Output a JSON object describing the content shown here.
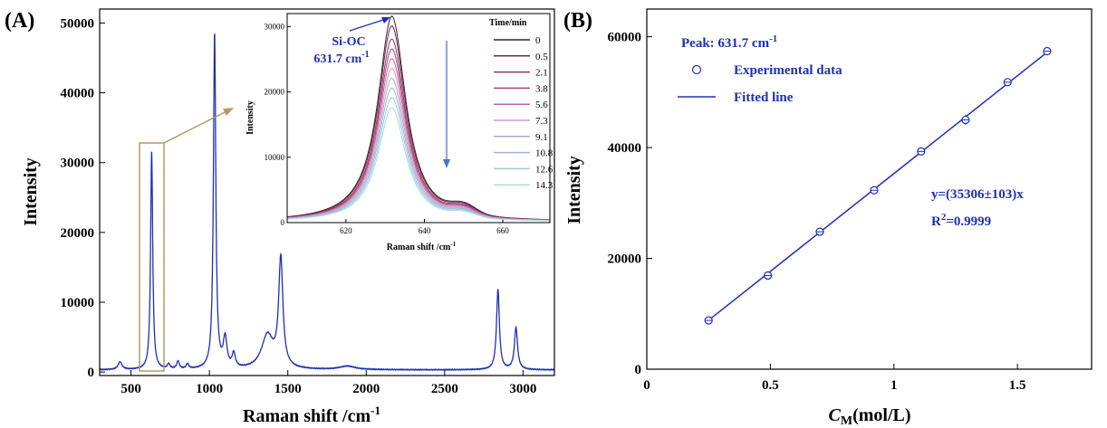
{
  "panel_a": {
    "label": "(A)",
    "xlabel": "Raman shift /cm",
    "xlabel_sup": "-1",
    "ylabel": "Intensity",
    "inset": {
      "xlabel": "Raman shift /cm",
      "xlabel_sup": "-1",
      "ylabel": "Intensity",
      "annotation_line1": "Si-OC",
      "annotation_line2": "631.7 cm",
      "annotation_sup": "-1",
      "legend_title": "Time/min"
    }
  },
  "panel_b": {
    "label": "(B)",
    "xlabel_main": "C",
    "xlabel_sub": "M",
    "xlabel_rest": "(mol/L)",
    "ylabel": "Intensity",
    "peak_label": "Peak: 631.7 cm",
    "peak_sup": "-1",
    "legend_data": "Experimental data",
    "legend_fit": "Fitted line",
    "equation": "y=(35306±103)x",
    "r2_prefix": "R",
    "r2_sup": "2",
    "r2_value": "=0.9999"
  },
  "colors": {
    "spectrum": "#1f2fb5",
    "fit_line": "#1f2fb5",
    "box_and_arrow": "#b29b63",
    "arrow_blue": "#4f72d6"
  },
  "chart_data": [
    {
      "type": "line",
      "title": "",
      "xlabel": "Raman shift /cm-1",
      "ylabel": "Intensity",
      "xlim": [
        300,
        3200
      ],
      "ylim": [
        -500,
        52000
      ],
      "x_ticks": [
        500,
        1000,
        1500,
        2000,
        2500,
        3000
      ],
      "y_ticks": [
        0,
        10000,
        20000,
        30000,
        40000,
        50000
      ],
      "peaks": [
        {
          "x": 430,
          "y": 1100,
          "w": 15
        },
        {
          "x": 631.7,
          "y": 31200,
          "w": 8
        },
        {
          "x": 740,
          "y": 700,
          "w": 10
        },
        {
          "x": 800,
          "y": 1100,
          "w": 10
        },
        {
          "x": 860,
          "y": 700,
          "w": 10
        },
        {
          "x": 1033,
          "y": 48000,
          "w": 9
        },
        {
          "x": 1100,
          "y": 4200,
          "w": 14
        },
        {
          "x": 1155,
          "y": 2000,
          "w": 12
        },
        {
          "x": 1370,
          "y": 4800,
          "w": 45
        },
        {
          "x": 1455,
          "y": 15500,
          "w": 16
        },
        {
          "x": 1880,
          "y": 500,
          "w": 60
        },
        {
          "x": 2840,
          "y": 11500,
          "w": 11
        },
        {
          "x": 2955,
          "y": 6000,
          "w": 12
        }
      ],
      "baseline": 300
    },
    {
      "type": "line",
      "title": "",
      "xlabel": "Raman shift /cm-1",
      "ylabel": "Intensity",
      "xlim": [
        605,
        672
      ],
      "ylim": [
        0,
        32000
      ],
      "x_ticks": [
        620,
        640,
        660
      ],
      "y_ticks": [
        10000,
        20000,
        30000
      ],
      "peak_center": 631.7,
      "legend_title": "Time/min",
      "series": [
        {
          "name": "0",
          "peak": 31500,
          "color": "#3a1f2c"
        },
        {
          "name": "0.5",
          "peak": 30000,
          "color": "#6b2848"
        },
        {
          "name": "2.1",
          "peak": 28000,
          "color": "#8e3a66"
        },
        {
          "name": "3.8",
          "peak": 26500,
          "color": "#a8447d"
        },
        {
          "name": "5.6",
          "peak": 25000,
          "color": "#c06a9c"
        },
        {
          "name": "7.3",
          "peak": 23500,
          "color": "#d697c0"
        },
        {
          "name": "9.1",
          "peak": 22000,
          "color": "#b7a3d2"
        },
        {
          "name": "10.8",
          "peak": 20500,
          "color": "#9fb6d6"
        },
        {
          "name": "12.6",
          "peak": 19000,
          "color": "#9ccfd6"
        },
        {
          "name": "14.3",
          "peak": 17500,
          "color": "#a7dbe6"
        }
      ]
    },
    {
      "type": "scatter",
      "title": "",
      "xlabel": "CM(mol/L)",
      "ylabel": "Intensity",
      "xlim": [
        0,
        1.8
      ],
      "ylim": [
        0,
        65000
      ],
      "x_ticks": [
        0.0,
        0.5,
        1.0,
        1.5
      ],
      "y_ticks": [
        0,
        20000,
        40000,
        60000
      ],
      "series": [
        {
          "name": "Experimental data",
          "x": [
            0.25,
            0.49,
            0.7,
            0.92,
            1.11,
            1.29,
            1.46,
            1.62
          ],
          "y": [
            8800,
            16900,
            24800,
            32300,
            39300,
            45000,
            51800,
            57400
          ],
          "yerr": [
            300,
            400,
            400,
            400,
            400,
            900,
            500,
            500
          ]
        }
      ],
      "fit": {
        "name": "Fitted line",
        "slope": 35306,
        "x_start": 0.25,
        "x_end": 1.62
      }
    }
  ]
}
